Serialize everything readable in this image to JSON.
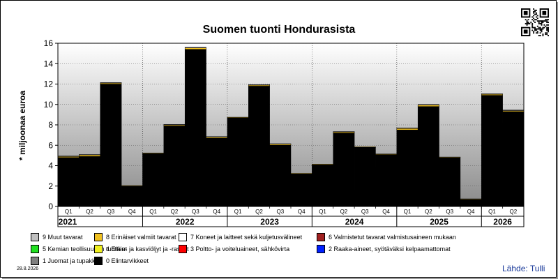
{
  "chart_data": {
    "type": "bar",
    "title": "Suomen tuonti Hondurasista",
    "ylabel": "* miljoonaa euroa",
    "ylim": [
      0,
      16
    ],
    "yticks": [
      0,
      2,
      4,
      6,
      8,
      10,
      12,
      14,
      16
    ],
    "grid": true,
    "legend_position": "bottom",
    "years": [
      "2021",
      "2022",
      "2023",
      "2024",
      "2025",
      "2026"
    ],
    "categories": [
      "Q1",
      "Q2",
      "Q3",
      "Q4",
      "Q1",
      "Q2",
      "Q3",
      "Q4",
      "Q1",
      "Q2",
      "Q3",
      "Q4",
      "Q1",
      "Q2",
      "Q3",
      "Q4",
      "Q1",
      "Q2",
      "Q3",
      "Q4",
      "Q1",
      "Q2"
    ],
    "category_years": [
      "2021",
      "2021",
      "2021",
      "2021",
      "2022",
      "2022",
      "2022",
      "2022",
      "2023",
      "2023",
      "2023",
      "2023",
      "2024",
      "2024",
      "2024",
      "2024",
      "2025",
      "2025",
      "2025",
      "2025",
      "2026",
      "2026"
    ],
    "series": [
      {
        "name": "0 Elintarvikkeet",
        "color": "#000000",
        "values": [
          4.8,
          4.9,
          12.0,
          2.0,
          5.2,
          7.9,
          15.4,
          6.7,
          8.7,
          11.8,
          6.0,
          3.2,
          4.1,
          7.2,
          5.8,
          5.1,
          7.5,
          9.8,
          4.8,
          0.7,
          10.9,
          9.3
        ]
      },
      {
        "name": "8 Erinäiset valmiit tavarat",
        "color": "#f0c020",
        "values": [
          0.1,
          0.15,
          0.1,
          0.05,
          0.05,
          0.1,
          0.15,
          0.1,
          0.05,
          0.1,
          0.1,
          0.05,
          0.05,
          0.1,
          0.05,
          0.05,
          0.15,
          0.15,
          0.05,
          0.05,
          0.1,
          0.1
        ]
      },
      {
        "name": "1 Juomat ja tupakka",
        "color": "#808080",
        "values": [
          0.05,
          0.05,
          0.05,
          0,
          0,
          0.05,
          0.05,
          0.05,
          0,
          0.05,
          0.05,
          0,
          0,
          0.05,
          0,
          0,
          0.05,
          0.05,
          0,
          0,
          0.05,
          0.05
        ]
      }
    ]
  },
  "legend": {
    "items": [
      {
        "label": "9 Muut tavarat",
        "color": "#c0c0c0"
      },
      {
        "label": "8 Erinäiset valmiit tavarat",
        "color": "#f0c020"
      },
      {
        "label": "7 Koneet ja laitteet sekä kuljetusvälineet",
        "color": "#ffffff"
      },
      {
        "label": "6 Valmistetut tavarat valmistusaineen mukaan",
        "color": "#a02020"
      },
      {
        "label": "5 Kemian teollisuuden tuotteet",
        "color": "#20e020"
      },
      {
        "label": "4 Eläin- ja kasviöljyt ja -rasvat",
        "color": "#f0f020"
      },
      {
        "label": "3 Poltto- ja voiteluaineet, sähkövirta",
        "color": "#ff0000"
      },
      {
        "label": "2 Raaka-aineet, syötäväksi kelpaamattomat",
        "color": "#0020ff"
      },
      {
        "label": "1 Juomat ja tupakka",
        "color": "#808080"
      },
      {
        "label": "0 Elintarvikkeet",
        "color": "#000000"
      }
    ]
  },
  "footer": {
    "date": "28.8.2026",
    "source": "Lähde: Tulli"
  }
}
